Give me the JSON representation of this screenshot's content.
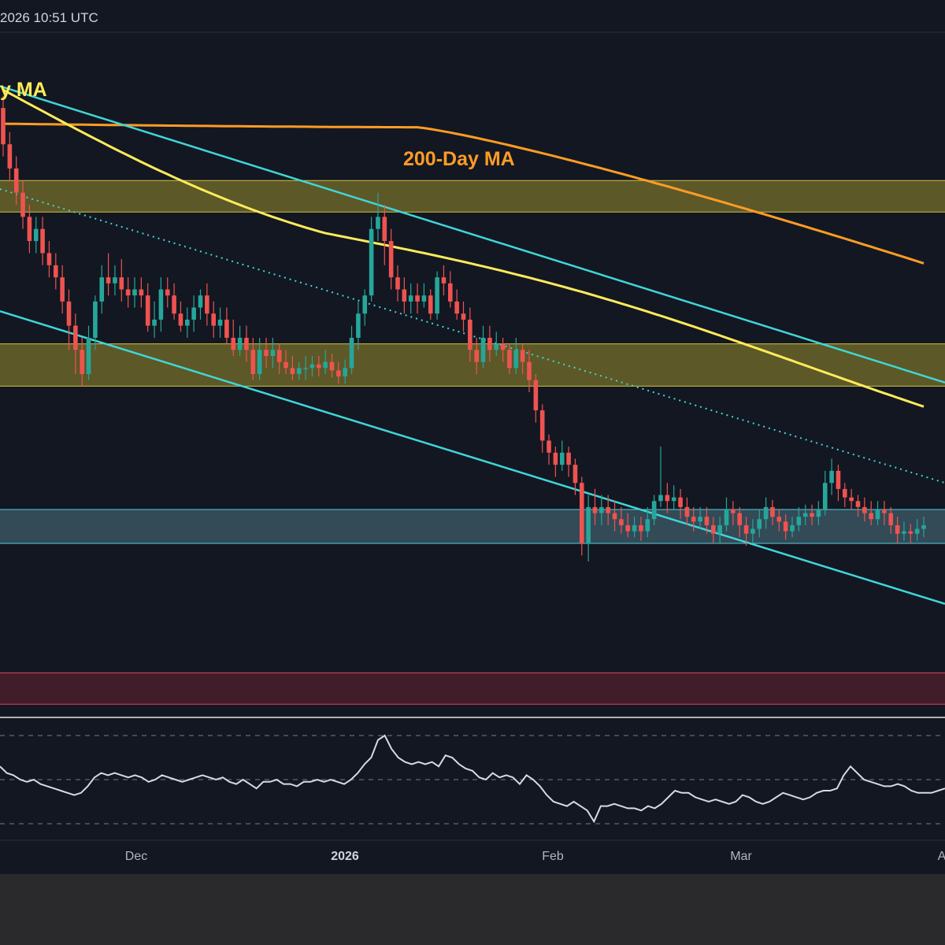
{
  "header": {
    "timestamp": "2026 10:51 UTC"
  },
  "chart_data": {
    "type": "candlestick",
    "annotations": {
      "ma50_label": "y MA",
      "ma200_label": "200-Day MA"
    },
    "x_ticks": [
      "Dec",
      "2026",
      "Feb",
      "Mar",
      "A"
    ],
    "colors": {
      "background": "#131722",
      "up": "#26a69a",
      "down": "#ef5350",
      "ma50": "#ffeb5a",
      "ma200": "#ff9c24",
      "channel": "#3fd6d6",
      "zone_yellow": "#6b6428",
      "zone_cyan": "#3a5460",
      "zone_red": "#4a1f2b",
      "rsi": "#d6d9e6"
    },
    "zones": [
      {
        "name": "upper-resistance",
        "low": 0.714,
        "high": 0.74
      },
      {
        "name": "mid-support",
        "low": 0.57,
        "high": 0.605
      },
      {
        "name": "low-support",
        "low": 0.44,
        "high": 0.468
      },
      {
        "name": "red-support",
        "low": 0.307,
        "high": 0.333
      }
    ],
    "candles": [
      [
        0.8,
        0.77,
        0.81,
        0.76
      ],
      [
        0.77,
        0.75,
        0.78,
        0.74
      ],
      [
        0.75,
        0.73,
        0.76,
        0.72
      ],
      [
        0.73,
        0.71,
        0.74,
        0.7
      ],
      [
        0.71,
        0.69,
        0.72,
        0.68
      ],
      [
        0.69,
        0.7,
        0.71,
        0.68
      ],
      [
        0.7,
        0.68,
        0.71,
        0.67
      ],
      [
        0.68,
        0.67,
        0.69,
        0.66
      ],
      [
        0.67,
        0.66,
        0.68,
        0.65
      ],
      [
        0.66,
        0.64,
        0.67,
        0.63
      ],
      [
        0.64,
        0.62,
        0.65,
        0.6
      ],
      [
        0.62,
        0.6,
        0.63,
        0.58
      ],
      [
        0.6,
        0.58,
        0.61,
        0.57
      ],
      [
        0.58,
        0.61,
        0.62,
        0.575
      ],
      [
        0.61,
        0.64,
        0.645,
        0.6
      ],
      [
        0.64,
        0.66,
        0.67,
        0.63
      ],
      [
        0.66,
        0.655,
        0.68,
        0.645
      ],
      [
        0.655,
        0.66,
        0.67,
        0.645
      ],
      [
        0.66,
        0.65,
        0.675,
        0.64
      ],
      [
        0.65,
        0.645,
        0.66,
        0.635
      ],
      [
        0.645,
        0.65,
        0.66,
        0.635
      ],
      [
        0.65,
        0.645,
        0.66,
        0.635
      ],
      [
        0.645,
        0.62,
        0.655,
        0.615
      ],
      [
        0.62,
        0.625,
        0.64,
        0.61
      ],
      [
        0.625,
        0.65,
        0.66,
        0.615
      ],
      [
        0.65,
        0.645,
        0.66,
        0.635
      ],
      [
        0.645,
        0.63,
        0.655,
        0.625
      ],
      [
        0.63,
        0.62,
        0.64,
        0.615
      ],
      [
        0.62,
        0.625,
        0.635,
        0.61
      ],
      [
        0.625,
        0.635,
        0.645,
        0.615
      ],
      [
        0.635,
        0.645,
        0.65,
        0.625
      ],
      [
        0.645,
        0.63,
        0.655,
        0.62
      ],
      [
        0.63,
        0.62,
        0.64,
        0.61
      ],
      [
        0.62,
        0.625,
        0.635,
        0.61
      ],
      [
        0.625,
        0.61,
        0.635,
        0.605
      ],
      [
        0.61,
        0.6,
        0.625,
        0.595
      ],
      [
        0.6,
        0.61,
        0.62,
        0.595
      ],
      [
        0.61,
        0.6,
        0.62,
        0.59
      ],
      [
        0.6,
        0.58,
        0.61,
        0.575
      ],
      [
        0.58,
        0.6,
        0.61,
        0.575
      ],
      [
        0.6,
        0.595,
        0.61,
        0.585
      ],
      [
        0.595,
        0.6,
        0.61,
        0.585
      ],
      [
        0.6,
        0.59,
        0.605,
        0.58
      ],
      [
        0.59,
        0.585,
        0.6,
        0.58
      ],
      [
        0.585,
        0.58,
        0.595,
        0.575
      ],
      [
        0.58,
        0.585,
        0.59,
        0.575
      ],
      [
        0.585,
        0.585,
        0.595,
        0.575
      ],
      [
        0.585,
        0.588,
        0.595,
        0.578
      ],
      [
        0.588,
        0.585,
        0.595,
        0.578
      ],
      [
        0.585,
        0.59,
        0.6,
        0.58
      ],
      [
        0.59,
        0.583,
        0.597,
        0.577
      ],
      [
        0.583,
        0.578,
        0.59,
        0.572
      ],
      [
        0.578,
        0.585,
        0.592,
        0.572
      ],
      [
        0.585,
        0.61,
        0.62,
        0.58
      ],
      [
        0.61,
        0.63,
        0.64,
        0.6
      ],
      [
        0.63,
        0.645,
        0.65,
        0.62
      ],
      [
        0.645,
        0.7,
        0.71,
        0.64
      ],
      [
        0.7,
        0.71,
        0.73,
        0.69
      ],
      [
        0.71,
        0.69,
        0.72,
        0.67
      ],
      [
        0.69,
        0.66,
        0.7,
        0.65
      ],
      [
        0.66,
        0.65,
        0.67,
        0.64
      ],
      [
        0.65,
        0.64,
        0.66,
        0.63
      ],
      [
        0.64,
        0.645,
        0.655,
        0.63
      ],
      [
        0.645,
        0.64,
        0.655,
        0.63
      ],
      [
        0.64,
        0.645,
        0.655,
        0.635
      ],
      [
        0.645,
        0.63,
        0.65,
        0.625
      ],
      [
        0.63,
        0.66,
        0.665,
        0.625
      ],
      [
        0.66,
        0.655,
        0.67,
        0.645
      ],
      [
        0.655,
        0.64,
        0.665,
        0.635
      ],
      [
        0.64,
        0.63,
        0.65,
        0.625
      ],
      [
        0.63,
        0.625,
        0.64,
        0.615
      ],
      [
        0.625,
        0.6,
        0.635,
        0.59
      ],
      [
        0.6,
        0.59,
        0.61,
        0.58
      ],
      [
        0.59,
        0.61,
        0.62,
        0.585
      ],
      [
        0.61,
        0.6,
        0.62,
        0.59
      ],
      [
        0.6,
        0.605,
        0.615,
        0.595
      ],
      [
        0.605,
        0.6,
        0.61,
        0.59
      ],
      [
        0.6,
        0.585,
        0.605,
        0.58
      ],
      [
        0.585,
        0.6,
        0.61,
        0.58
      ],
      [
        0.6,
        0.59,
        0.605,
        0.58
      ],
      [
        0.59,
        0.575,
        0.6,
        0.565
      ],
      [
        0.575,
        0.55,
        0.58,
        0.54
      ],
      [
        0.55,
        0.525,
        0.555,
        0.515
      ],
      [
        0.525,
        0.515,
        0.53,
        0.505
      ],
      [
        0.515,
        0.505,
        0.52,
        0.495
      ],
      [
        0.505,
        0.515,
        0.525,
        0.5
      ],
      [
        0.515,
        0.505,
        0.52,
        0.495
      ],
      [
        0.505,
        0.49,
        0.51,
        0.48
      ],
      [
        0.49,
        0.44,
        0.495,
        0.43
      ],
      [
        0.44,
        0.47,
        0.48,
        0.425
      ],
      [
        0.47,
        0.465,
        0.485,
        0.455
      ],
      [
        0.465,
        0.47,
        0.48,
        0.455
      ],
      [
        0.47,
        0.465,
        0.48,
        0.455
      ],
      [
        0.465,
        0.46,
        0.475,
        0.45
      ],
      [
        0.46,
        0.455,
        0.47,
        0.448
      ],
      [
        0.455,
        0.45,
        0.465,
        0.445
      ],
      [
        0.45,
        0.455,
        0.462,
        0.445
      ],
      [
        0.455,
        0.45,
        0.462,
        0.442
      ],
      [
        0.45,
        0.46,
        0.47,
        0.445
      ],
      [
        0.46,
        0.475,
        0.48,
        0.455
      ],
      [
        0.475,
        0.48,
        0.52,
        0.47
      ],
      [
        0.48,
        0.475,
        0.49,
        0.465
      ],
      [
        0.475,
        0.478,
        0.488,
        0.468
      ],
      [
        0.478,
        0.47,
        0.485,
        0.46
      ],
      [
        0.47,
        0.462,
        0.478,
        0.455
      ],
      [
        0.462,
        0.458,
        0.47,
        0.45
      ],
      [
        0.458,
        0.462,
        0.47,
        0.452
      ],
      [
        0.462,
        0.455,
        0.47,
        0.448
      ],
      [
        0.455,
        0.448,
        0.462,
        0.44
      ],
      [
        0.448,
        0.455,
        0.462,
        0.44
      ],
      [
        0.455,
        0.468,
        0.478,
        0.45
      ],
      [
        0.468,
        0.465,
        0.475,
        0.455
      ],
      [
        0.465,
        0.455,
        0.47,
        0.445
      ],
      [
        0.455,
        0.448,
        0.462,
        0.438
      ],
      [
        0.448,
        0.452,
        0.46,
        0.44
      ],
      [
        0.452,
        0.46,
        0.468,
        0.445
      ],
      [
        0.46,
        0.47,
        0.478,
        0.452
      ],
      [
        0.47,
        0.462,
        0.476,
        0.455
      ],
      [
        0.462,
        0.458,
        0.468,
        0.45
      ],
      [
        0.458,
        0.45,
        0.464,
        0.443
      ],
      [
        0.45,
        0.455,
        0.462,
        0.445
      ],
      [
        0.455,
        0.462,
        0.47,
        0.45
      ],
      [
        0.462,
        0.465,
        0.472,
        0.455
      ],
      [
        0.465,
        0.462,
        0.472,
        0.455
      ],
      [
        0.462,
        0.468,
        0.475,
        0.455
      ],
      [
        0.468,
        0.49,
        0.5,
        0.463
      ],
      [
        0.49,
        0.5,
        0.51,
        0.48
      ],
      [
        0.5,
        0.485,
        0.505,
        0.475
      ],
      [
        0.485,
        0.478,
        0.49,
        0.47
      ],
      [
        0.478,
        0.475,
        0.485,
        0.468
      ],
      [
        0.475,
        0.47,
        0.48,
        0.462
      ],
      [
        0.47,
        0.465,
        0.478,
        0.458
      ],
      [
        0.465,
        0.46,
        0.475,
        0.455
      ],
      [
        0.46,
        0.468,
        0.475,
        0.455
      ],
      [
        0.468,
        0.465,
        0.475,
        0.455
      ],
      [
        0.465,
        0.455,
        0.47,
        0.448
      ],
      [
        0.455,
        0.448,
        0.462,
        0.44
      ],
      [
        0.448,
        0.45,
        0.458,
        0.442
      ],
      [
        0.45,
        0.448,
        0.456,
        0.44
      ],
      [
        0.448,
        0.452,
        0.46,
        0.442
      ],
      [
        0.452,
        0.455,
        0.462,
        0.445
      ]
    ],
    "rsi": [
      56,
      53,
      52,
      50,
      49,
      50,
      48,
      47,
      46,
      45,
      44,
      43,
      44,
      47,
      51,
      53,
      52,
      53,
      52,
      51,
      52,
      51,
      49,
      50,
      52,
      51,
      50,
      49,
      50,
      51,
      52,
      51,
      50,
      51,
      49,
      48,
      50,
      48,
      46,
      49,
      49,
      50,
      48,
      48,
      47,
      49,
      49,
      50,
      49,
      50,
      49,
      48,
      50,
      53,
      57,
      60,
      68,
      70,
      64,
      60,
      58,
      57,
      58,
      57,
      58,
      56,
      61,
      60,
      57,
      55,
      54,
      51,
      50,
      53,
      51,
      52,
      51,
      48,
      52,
      50,
      47,
      43,
      40,
      39,
      38,
      40,
      38,
      36,
      31,
      38,
      38,
      39,
      38,
      37,
      37,
      36,
      38,
      37,
      39,
      42,
      45,
      44,
      44,
      42,
      41,
      40,
      41,
      40,
      39,
      40,
      43,
      42,
      40,
      39,
      40,
      42,
      44,
      43,
      42,
      41,
      42,
      44,
      45,
      45,
      46,
      52,
      56,
      53,
      50,
      49,
      48,
      47,
      47,
      48,
      47,
      45,
      44,
      44,
      44,
      45,
      46
    ],
    "rsi_levels": [
      70,
      50,
      30
    ],
    "ylim": [
      0.3,
      0.86
    ],
    "rsi_ylim": [
      25,
      75
    ]
  }
}
